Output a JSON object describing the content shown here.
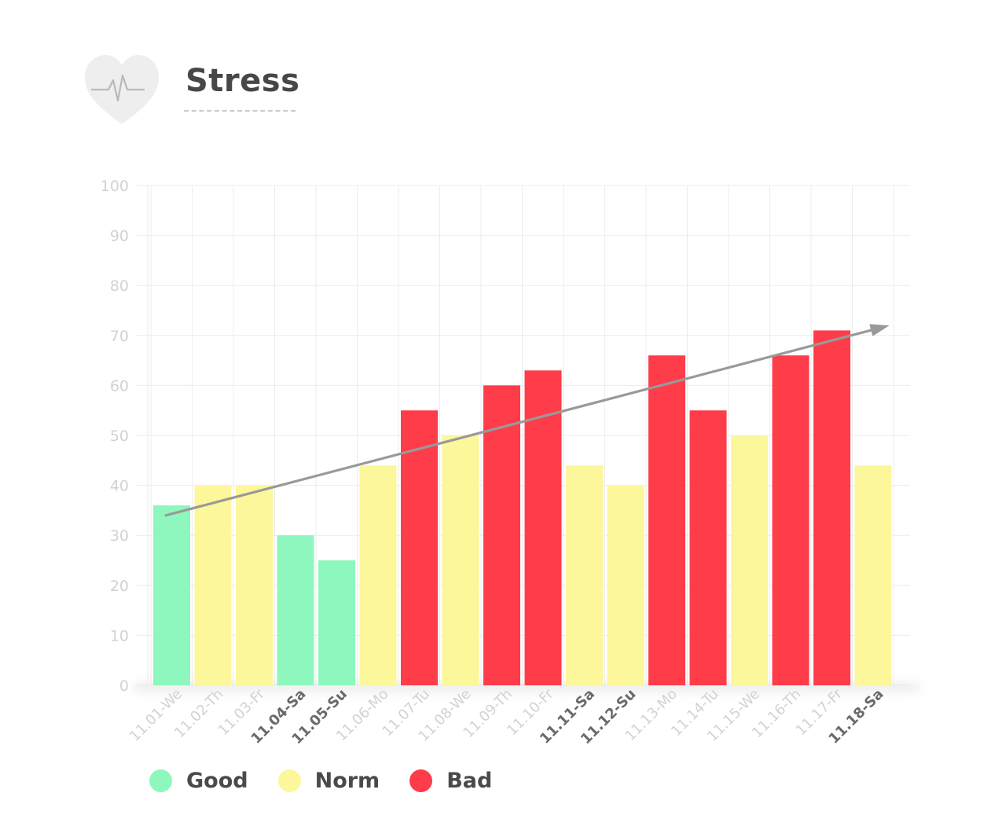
{
  "header": {
    "title": "Stress",
    "icon": "heart-pulse-icon"
  },
  "colors": {
    "Good": "#8ef7bd",
    "Norm": "#fdf79b",
    "Bad": "#fe3c4a",
    "trend": "#999999",
    "grid": "#ececec",
    "axis_text": "#d2d2d2",
    "label_dark": "#6a6a6a"
  },
  "chart_data": {
    "type": "bar",
    "title": "Stress",
    "xlabel": "",
    "ylabel": "",
    "ylim": [
      0,
      100
    ],
    "yticks": [
      "0",
      "10",
      "20",
      "30",
      "40",
      "50",
      "60",
      "70",
      "80",
      "90",
      "100"
    ],
    "grid": true,
    "categories": [
      "11.01-We",
      "11.02-Th",
      "11.03-Fr",
      "11.04-Sa",
      "11.05-Su",
      "11.06-Mo",
      "11.07-Tu",
      "11.08-We",
      "11.09-Th",
      "11.10-Fr",
      "11.11-Sa",
      "11.12-Su",
      "11.13-Mo",
      "11.14-Tu",
      "11.15-We",
      "11.16-Th",
      "11.17-Fr",
      "11.18-Sa"
    ],
    "values": [
      36,
      40,
      40,
      30,
      25,
      44,
      55,
      50,
      60,
      63,
      44,
      40,
      66,
      55,
      50,
      66,
      71,
      44
    ],
    "status": [
      "Good",
      "Norm",
      "Norm",
      "Good",
      "Good",
      "Norm",
      "Bad",
      "Norm",
      "Bad",
      "Bad",
      "Norm",
      "Norm",
      "Bad",
      "Bad",
      "Norm",
      "Bad",
      "Bad",
      "Norm"
    ],
    "highlighted_labels": [
      "11.04-Sa",
      "11.05-Su",
      "11.11-Sa",
      "11.12-Su",
      "11.18-Sa"
    ],
    "trend": {
      "from": {
        "x": "11.01-We",
        "y": 34
      },
      "to": {
        "x": "11.18-Sa",
        "y": 72
      }
    },
    "legend": [
      {
        "name": "Good"
      },
      {
        "name": "Norm"
      },
      {
        "name": "Bad"
      }
    ],
    "legend_position": "bottom-left"
  }
}
